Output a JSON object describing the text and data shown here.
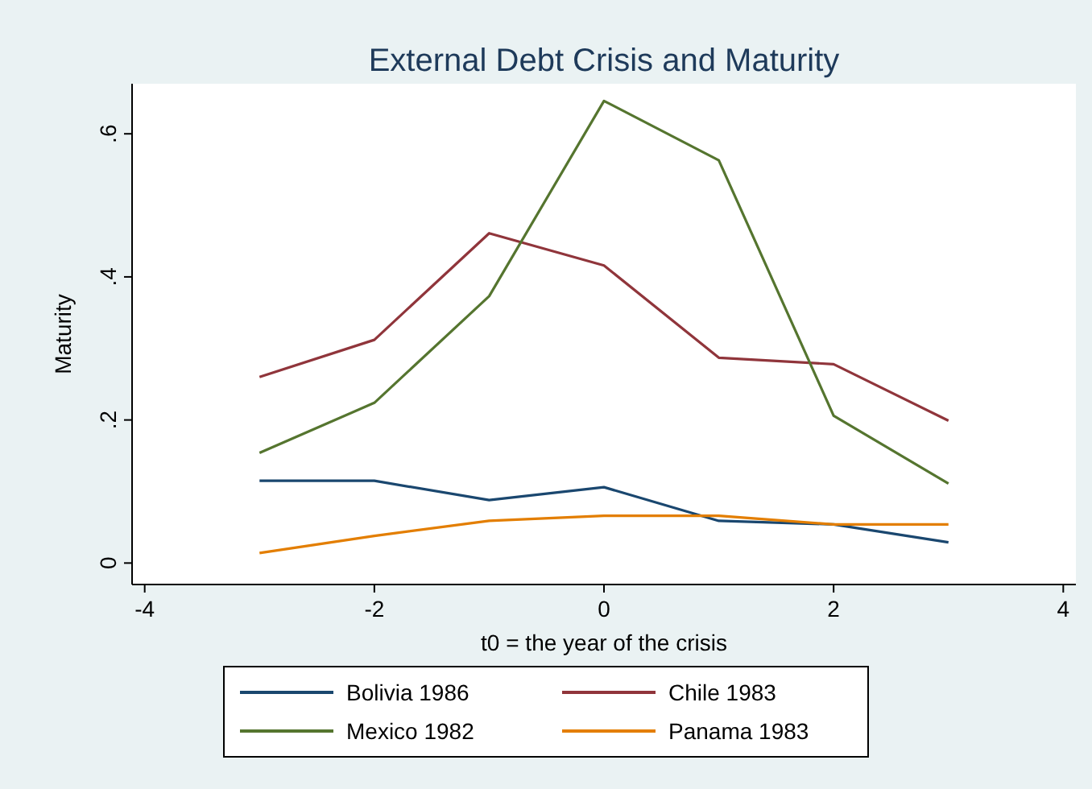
{
  "chart_data": {
    "type": "line",
    "title": "External Debt Crisis and Maturity",
    "xlabel": "t0 = the year of the crisis",
    "ylabel": "Maturity",
    "x": [
      -3,
      -2,
      -1,
      0,
      1,
      2,
      3
    ],
    "series": [
      {
        "name": "Bolivia 1986",
        "color": "#1a476f",
        "values": [
          0.115,
          0.115,
          0.088,
          0.106,
          0.059,
          0.054,
          0.029
        ]
      },
      {
        "name": "Chile 1983",
        "color": "#90353b",
        "values": [
          0.26,
          0.312,
          0.461,
          0.416,
          0.287,
          0.278,
          0.199
        ]
      },
      {
        "name": "Mexico 1982",
        "color": "#55752f",
        "values": [
          0.154,
          0.224,
          0.373,
          0.646,
          0.563,
          0.206,
          0.111
        ]
      },
      {
        "name": "Panama 1983",
        "color": "#e37e00",
        "values": [
          0.014,
          0.038,
          0.059,
          0.066,
          0.066,
          0.054,
          0.054
        ]
      }
    ],
    "xlim": [
      -4.11,
      4.11
    ],
    "xticks": [
      -4,
      -2,
      0,
      2,
      4
    ],
    "ylim": [
      -0.03,
      0.67
    ],
    "yticks": [
      {
        "value": 0,
        "label": "0"
      },
      {
        "value": 0.2,
        "label": ".2"
      },
      {
        "value": 0.4,
        "label": ".4"
      },
      {
        "value": 0.6,
        "label": ".6"
      }
    ],
    "grid": false,
    "legend": "bottom",
    "marker": "none",
    "line_style": "solid"
  }
}
